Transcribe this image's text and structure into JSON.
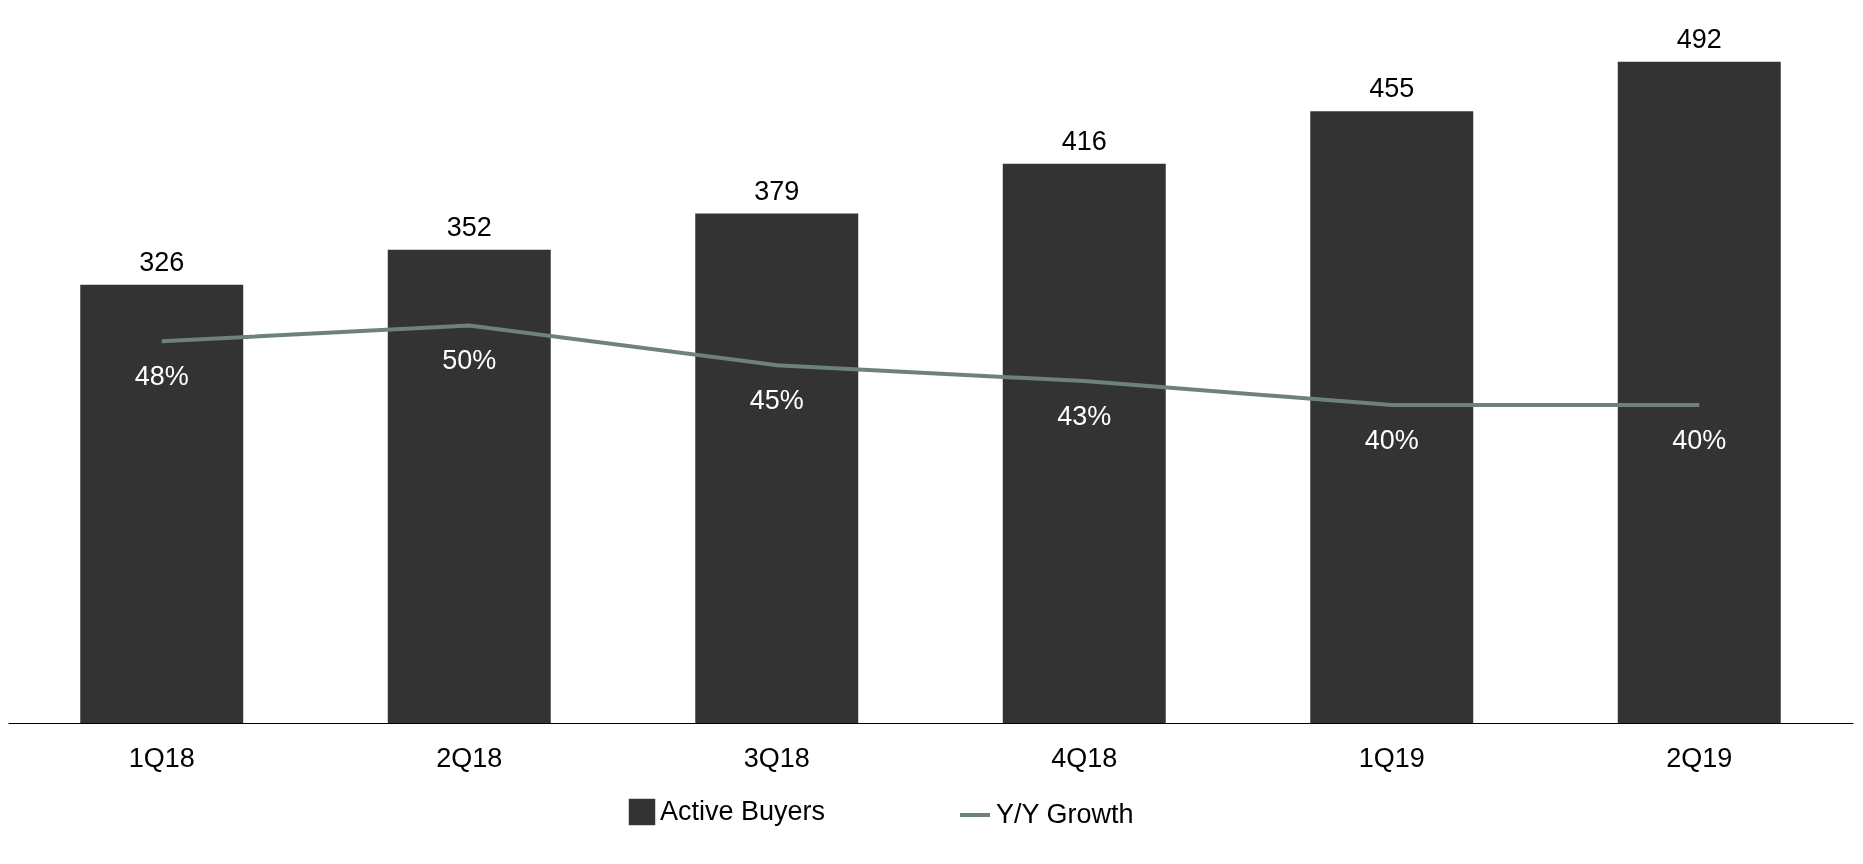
{
  "chart_data": {
    "type": "bar",
    "categories": [
      "1Q18",
      "2Q18",
      "3Q18",
      "4Q18",
      "1Q19",
      "2Q19"
    ],
    "series": [
      {
        "name": "Active Buyers",
        "color": "#333333",
        "values": [
          326,
          352,
          379,
          416,
          455,
          492
        ],
        "value_labels": [
          "326",
          "352",
          "379",
          "416",
          "455",
          "492"
        ]
      },
      {
        "name": "Y/Y Growth",
        "type": "line",
        "axis": "y2",
        "color": "#6f8279",
        "values": [
          48,
          50,
          45,
          43,
          40,
          40
        ],
        "value_labels": [
          "48%",
          "50%",
          "45%",
          "43%",
          "40%",
          "40%"
        ]
      }
    ],
    "tick_labels": "x",
    "grid": false,
    "legend": "bottom",
    "marker": "none",
    "line_style": "solid"
  }
}
